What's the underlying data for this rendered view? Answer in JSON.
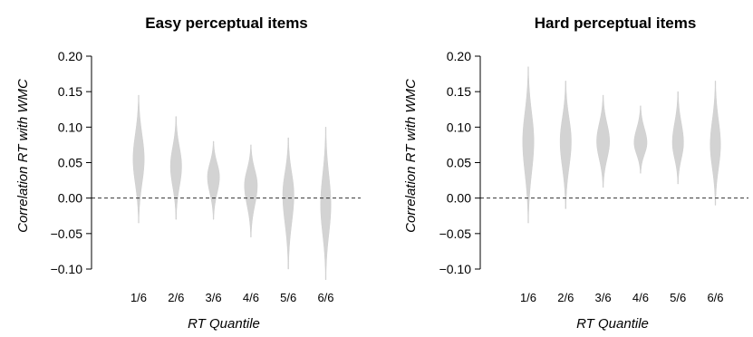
{
  "chart_data": [
    {
      "type": "violin",
      "title": "Easy perceptual items",
      "xlabel": "RT Quantile",
      "ylabel": "Correlation RT with WMC",
      "ylim": [
        -0.11,
        0.205
      ],
      "yticks": [
        -0.1,
        -0.05,
        0.0,
        0.05,
        0.1,
        0.15,
        0.2
      ],
      "ytick_labels": [
        "−0.10",
        "−0.05",
        "0.00",
        "0.05",
        "0.10",
        "0.15",
        "0.20"
      ],
      "categories": [
        "1/6",
        "2/6",
        "3/6",
        "4/6",
        "5/6",
        "6/6"
      ],
      "reference_line": 0,
      "fill_color": "#d3d3d3",
      "violins": [
        {
          "category": "1/6",
          "center": 0.055,
          "min": -0.035,
          "max": 0.145,
          "half_width": 0.13
        },
        {
          "category": "2/6",
          "center": 0.045,
          "min": -0.03,
          "max": 0.115,
          "half_width": 0.13
        },
        {
          "category": "3/6",
          "center": 0.03,
          "min": -0.03,
          "max": 0.08,
          "half_width": 0.14
        },
        {
          "category": "4/6",
          "center": 0.018,
          "min": -0.055,
          "max": 0.075,
          "half_width": 0.15
        },
        {
          "category": "5/6",
          "center": 0.005,
          "min": -0.1,
          "max": 0.085,
          "half_width": 0.13
        },
        {
          "category": "6/6",
          "center": -0.01,
          "min": -0.115,
          "max": 0.1,
          "half_width": 0.12
        }
      ]
    },
    {
      "type": "violin",
      "title": "Hard perceptual items",
      "xlabel": "RT Quantile",
      "ylabel": "Correlation RT with WMC",
      "ylim": [
        -0.11,
        0.205
      ],
      "yticks": [
        -0.1,
        -0.05,
        0.0,
        0.05,
        0.1,
        0.15,
        0.2
      ],
      "ytick_labels": [
        "−0.10",
        "−0.05",
        "0.00",
        "0.05",
        "0.10",
        "0.15",
        "0.20"
      ],
      "categories": [
        "1/6",
        "2/6",
        "3/6",
        "4/6",
        "5/6",
        "6/6"
      ],
      "reference_line": 0,
      "fill_color": "#d3d3d3",
      "violins": [
        {
          "category": "1/6",
          "center": 0.08,
          "min": -0.035,
          "max": 0.185,
          "half_width": 0.13
        },
        {
          "category": "2/6",
          "center": 0.08,
          "min": -0.015,
          "max": 0.165,
          "half_width": 0.13
        },
        {
          "category": "3/6",
          "center": 0.08,
          "min": 0.015,
          "max": 0.145,
          "half_width": 0.15
        },
        {
          "category": "4/6",
          "center": 0.078,
          "min": 0.035,
          "max": 0.13,
          "half_width": 0.15
        },
        {
          "category": "5/6",
          "center": 0.078,
          "min": 0.02,
          "max": 0.15,
          "half_width": 0.13
        },
        {
          "category": "6/6",
          "center": 0.075,
          "min": -0.01,
          "max": 0.165,
          "half_width": 0.12
        }
      ]
    }
  ]
}
